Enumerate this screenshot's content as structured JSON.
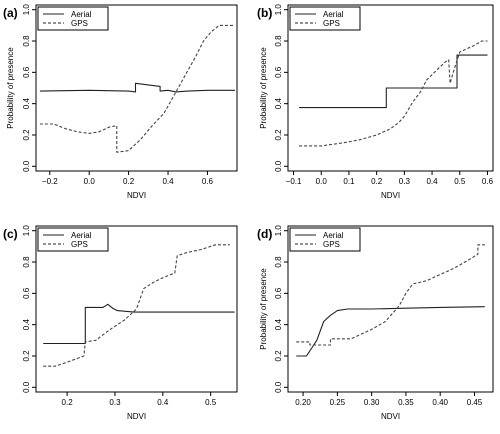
{
  "chart_data": [
    {
      "panel": "(a)",
      "type": "line",
      "xlabel": "NDVI",
      "ylabel": "Probability of presence",
      "xlim": [
        -0.27,
        0.75
      ],
      "ylim": [
        -0.03,
        1.03
      ],
      "xticks": [
        -0.2,
        0.0,
        0.2,
        0.4,
        0.6
      ],
      "xtick_labels": [
        "−0.2",
        "0.0",
        "0.2",
        "0.4",
        "0.6"
      ],
      "yticks": [
        0.0,
        0.2,
        0.4,
        0.6,
        0.8,
        1.0
      ],
      "ytick_labels": [
        "0.0",
        "0.2",
        "0.4",
        "0.6",
        "0.8",
        "1.0"
      ],
      "legend_position": "top-left",
      "series": [
        {
          "name": "Aerial",
          "style": "solid",
          "x": [
            -0.25,
            0.0,
            0.2,
            0.235,
            0.235,
            0.36,
            0.36,
            0.4,
            0.44,
            0.5,
            0.6,
            0.74
          ],
          "y": [
            0.48,
            0.485,
            0.48,
            0.475,
            0.53,
            0.51,
            0.48,
            0.485,
            0.475,
            0.48,
            0.485,
            0.485
          ]
        },
        {
          "name": "GPS",
          "style": "dashed",
          "x": [
            -0.25,
            -0.18,
            -0.12,
            -0.06,
            0.0,
            0.05,
            0.1,
            0.14,
            0.14,
            0.2,
            0.26,
            0.32,
            0.38,
            0.42,
            0.46,
            0.5,
            0.54,
            0.58,
            0.62,
            0.66,
            0.74
          ],
          "y": [
            0.27,
            0.27,
            0.24,
            0.22,
            0.21,
            0.22,
            0.25,
            0.26,
            0.09,
            0.1,
            0.17,
            0.26,
            0.34,
            0.43,
            0.52,
            0.61,
            0.7,
            0.8,
            0.86,
            0.9,
            0.9
          ]
        }
      ]
    },
    {
      "panel": "(b)",
      "type": "line",
      "xlabel": "NDVI",
      "ylabel": "Probability of presence",
      "xlim": [
        -0.12,
        0.62
      ],
      "ylim": [
        -0.03,
        1.03
      ],
      "xticks": [
        -0.1,
        0.0,
        0.1,
        0.2,
        0.3,
        0.4,
        0.5,
        0.6
      ],
      "xtick_labels": [
        "−0.1",
        "0.0",
        "0.1",
        "0.2",
        "0.3",
        "0.4",
        "0.5",
        "0.6"
      ],
      "yticks": [
        0.0,
        0.2,
        0.4,
        0.6,
        0.8,
        1.0
      ],
      "ytick_labels": [
        "0.0",
        "0.2",
        "0.4",
        "0.6",
        "0.8",
        "1.0"
      ],
      "legend_position": "top-left",
      "series": [
        {
          "name": "Aerial",
          "style": "solid",
          "x": [
            -0.08,
            0.235,
            0.235,
            0.49,
            0.49,
            0.6
          ],
          "y": [
            0.375,
            0.375,
            0.5,
            0.5,
            0.71,
            0.71
          ]
        },
        {
          "name": "GPS",
          "style": "dashed",
          "x": [
            -0.08,
            0.0,
            0.08,
            0.14,
            0.2,
            0.25,
            0.28,
            0.3,
            0.33,
            0.36,
            0.38,
            0.42,
            0.45,
            0.46,
            0.465,
            0.48,
            0.5,
            0.55,
            0.58,
            0.6
          ],
          "y": [
            0.13,
            0.13,
            0.15,
            0.17,
            0.2,
            0.24,
            0.28,
            0.32,
            0.41,
            0.48,
            0.55,
            0.62,
            0.67,
            0.68,
            0.53,
            0.62,
            0.73,
            0.77,
            0.8,
            0.8
          ]
        }
      ]
    },
    {
      "panel": "(c)",
      "type": "line",
      "xlabel": "NDVI",
      "ylabel": "",
      "xlim": [
        0.135,
        0.555
      ],
      "ylim": [
        -0.03,
        1.03
      ],
      "xticks": [
        0.2,
        0.3,
        0.4,
        0.5
      ],
      "xtick_labels": [
        "0.2",
        "0.3",
        "0.4",
        "0.5"
      ],
      "yticks": [
        0.0,
        0.2,
        0.4,
        0.6,
        0.8,
        1.0
      ],
      "ytick_labels": [
        "0.0",
        "0.2",
        "0.4",
        "0.6",
        "0.8",
        "1.0"
      ],
      "legend_position": "top-left",
      "series": [
        {
          "name": "Aerial",
          "style": "solid",
          "x": [
            0.15,
            0.238,
            0.238,
            0.275,
            0.285,
            0.295,
            0.305,
            0.34,
            0.55
          ],
          "y": [
            0.28,
            0.28,
            0.51,
            0.51,
            0.53,
            0.505,
            0.49,
            0.48,
            0.48
          ]
        },
        {
          "name": "GPS",
          "style": "dashed",
          "x": [
            0.15,
            0.175,
            0.2,
            0.235,
            0.238,
            0.26,
            0.29,
            0.32,
            0.345,
            0.36,
            0.38,
            0.4,
            0.425,
            0.43,
            0.45,
            0.48,
            0.51,
            0.54
          ],
          "y": [
            0.135,
            0.135,
            0.16,
            0.2,
            0.29,
            0.3,
            0.37,
            0.43,
            0.5,
            0.63,
            0.67,
            0.7,
            0.73,
            0.84,
            0.86,
            0.88,
            0.91,
            0.91
          ]
        }
      ]
    },
    {
      "panel": "(d)",
      "type": "line",
      "xlabel": "NDVI",
      "ylabel": "Probability of presence",
      "xlim": [
        0.178,
        0.477
      ],
      "ylim": [
        -0.03,
        1.03
      ],
      "xticks": [
        0.2,
        0.25,
        0.3,
        0.35,
        0.4,
        0.45
      ],
      "xtick_labels": [
        "0.20",
        "0.25",
        "0.30",
        "0.35",
        "0.40",
        "0.45"
      ],
      "yticks": [
        0.0,
        0.2,
        0.4,
        0.6,
        0.8,
        1.0
      ],
      "ytick_labels": [
        "0.0",
        "0.2",
        "0.4",
        "0.6",
        "0.8",
        "1.0"
      ],
      "legend_position": "top-left",
      "series": [
        {
          "name": "Aerial",
          "style": "solid",
          "x": [
            0.19,
            0.205,
            0.22,
            0.23,
            0.24,
            0.25,
            0.265,
            0.3,
            0.35,
            0.4,
            0.465
          ],
          "y": [
            0.2,
            0.2,
            0.3,
            0.42,
            0.46,
            0.49,
            0.5,
            0.5,
            0.505,
            0.51,
            0.515
          ]
        },
        {
          "name": "GPS",
          "style": "dashed",
          "x": [
            0.19,
            0.21,
            0.21,
            0.24,
            0.24,
            0.27,
            0.3,
            0.32,
            0.34,
            0.35,
            0.36,
            0.38,
            0.4,
            0.42,
            0.44,
            0.455,
            0.455,
            0.465
          ],
          "y": [
            0.29,
            0.29,
            0.27,
            0.27,
            0.31,
            0.31,
            0.37,
            0.42,
            0.52,
            0.6,
            0.66,
            0.68,
            0.72,
            0.76,
            0.81,
            0.85,
            0.91,
            0.91
          ]
        }
      ]
    }
  ]
}
